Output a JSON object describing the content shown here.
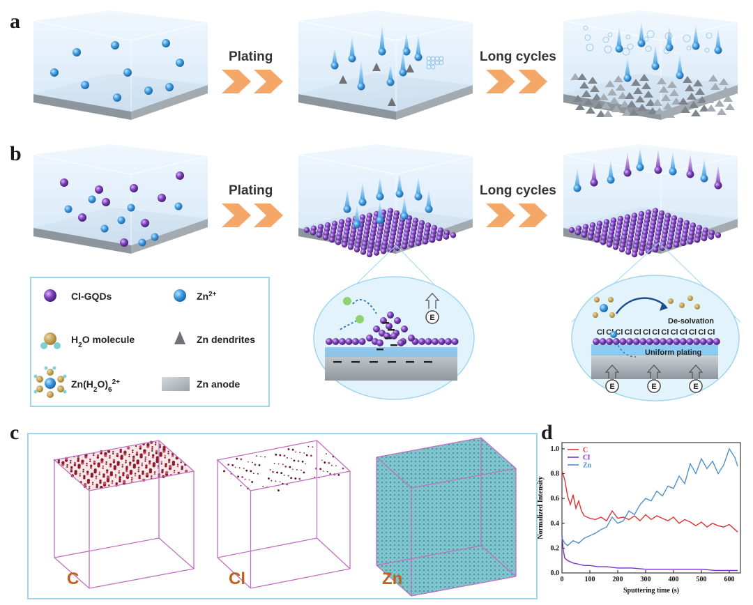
{
  "panels": {
    "a": "a",
    "b": "b",
    "c": "c",
    "d": "d"
  },
  "steps": {
    "plating": "Plating",
    "long_cycles": "Long cycles"
  },
  "legend": {
    "cl_gqds": "Cl-GQDs",
    "zn2": "Zn",
    "zn2_sup": "2+",
    "h2o": "H",
    "h2o_sub": "2",
    "h2o_rest": "O molecule",
    "dendrites": "Zn dendrites",
    "complex": "Zn(H",
    "complex_sub1": "2",
    "complex_mid": "O)",
    "complex_sub2": "6",
    "complex_sup": "2+",
    "anode": "Zn anode"
  },
  "zoom": {
    "e_label": "E",
    "desolvation": "De-solvation",
    "uniform": "Uniform plating",
    "cl": "Cl"
  },
  "tomography": {
    "c_label": "C",
    "cl_label": "Cl",
    "zn_label": "Zn"
  },
  "colors": {
    "zn_ion": "#3d9be0",
    "gqd": "#7b3fb8",
    "arrow": "#f4a766",
    "liquid": "#d9ebfa",
    "anode": "#b5bcc2",
    "frame": "#9fd6ee",
    "carbon": "#8b1a2a",
    "zn_tomo": "#4aa6b4"
  },
  "chart_data": {
    "type": "line",
    "xlabel": "Sputtering time (s)",
    "ylabel": "Normalized Intensity",
    "xlim": [
      0,
      640
    ],
    "ylim": [
      0,
      1.05
    ],
    "xticks": [
      "0",
      "100",
      "200",
      "300",
      "400",
      "500",
      "600"
    ],
    "yticks": [
      "0.0",
      "0.2",
      "0.4",
      "0.6",
      "0.8",
      "1.0"
    ],
    "legend_position": "top-left",
    "series": [
      {
        "name": "C",
        "color": "#e03030",
        "x": [
          0,
          10,
          20,
          30,
          40,
          50,
          60,
          70,
          80,
          100,
          120,
          140,
          160,
          180,
          200,
          220,
          240,
          260,
          280,
          300,
          320,
          340,
          360,
          380,
          400,
          420,
          440,
          460,
          480,
          500,
          520,
          540,
          560,
          580,
          600,
          620,
          630
        ],
        "y": [
          0.82,
          0.75,
          0.62,
          0.55,
          0.63,
          0.52,
          0.58,
          0.5,
          0.46,
          0.44,
          0.43,
          0.45,
          0.42,
          0.5,
          0.44,
          0.45,
          0.43,
          0.46,
          0.42,
          0.47,
          0.43,
          0.46,
          0.44,
          0.42,
          0.45,
          0.4,
          0.43,
          0.41,
          0.38,
          0.41,
          0.37,
          0.4,
          0.38,
          0.37,
          0.39,
          0.35,
          0.33
        ]
      },
      {
        "name": "Cl",
        "color": "#7b2fcf",
        "x": [
          0,
          5,
          10,
          20,
          30,
          40,
          60,
          80,
          100,
          130,
          160,
          200,
          250,
          300,
          350,
          400,
          450,
          500,
          550,
          600,
          630
        ],
        "y": [
          0.3,
          0.18,
          0.12,
          0.1,
          0.09,
          0.08,
          0.07,
          0.06,
          0.06,
          0.05,
          0.05,
          0.04,
          0.04,
          0.03,
          0.03,
          0.03,
          0.03,
          0.03,
          0.02,
          0.02,
          0.02
        ]
      },
      {
        "name": "Zn",
        "color": "#4f8fc8",
        "x": [
          0,
          10,
          20,
          40,
          60,
          80,
          100,
          120,
          140,
          160,
          180,
          200,
          220,
          240,
          260,
          280,
          300,
          320,
          340,
          360,
          380,
          400,
          420,
          440,
          460,
          480,
          500,
          520,
          540,
          560,
          580,
          600,
          620,
          630
        ],
        "y": [
          0.28,
          0.24,
          0.22,
          0.26,
          0.24,
          0.28,
          0.3,
          0.32,
          0.35,
          0.37,
          0.45,
          0.4,
          0.42,
          0.5,
          0.47,
          0.55,
          0.6,
          0.58,
          0.66,
          0.62,
          0.7,
          0.68,
          0.78,
          0.72,
          0.88,
          0.8,
          0.92,
          0.84,
          0.9,
          0.8,
          0.87,
          1.0,
          0.93,
          0.86
        ]
      }
    ]
  }
}
